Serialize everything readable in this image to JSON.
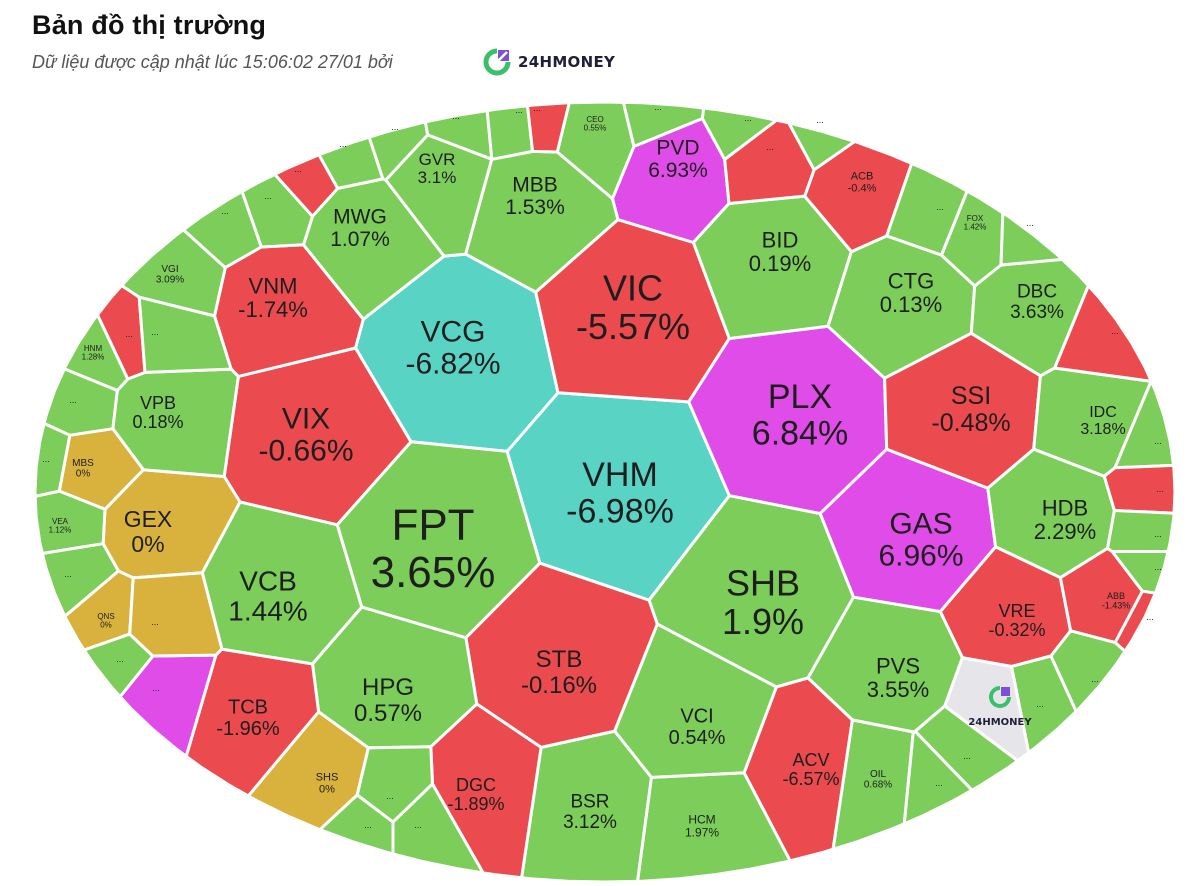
{
  "header": {
    "title": "Bản đồ thị trường",
    "subtitle": "Dữ liệu được cập nhật lúc 15:06:02 27/01 bởi",
    "brand": "24HMONEY"
  },
  "colors": {
    "up": "#7ccd5a",
    "down": "#eb4a4e",
    "ceiling": "#e04ce8",
    "floor": "#58d3c4",
    "unchanged": "#d8b23c",
    "logo_tile": "#e6e6ea"
  },
  "chart_data": {
    "type": "heatmap",
    "tiles": [
      {
        "symbol": "VHM",
        "value": "-6.98%",
        "status": "floor"
      },
      {
        "symbol": "VCG",
        "value": "-6.82%",
        "status": "floor"
      },
      {
        "symbol": "VIC",
        "value": "-5.57%",
        "status": "down"
      },
      {
        "symbol": "PLX",
        "value": "6.84%",
        "status": "ceiling"
      },
      {
        "symbol": "GAS",
        "value": "6.96%",
        "status": "ceiling"
      },
      {
        "symbol": "PVD",
        "value": "6.93%",
        "status": "ceiling"
      },
      {
        "symbol": "FPT",
        "value": "3.65%",
        "status": "up"
      },
      {
        "symbol": "SHB",
        "value": "1.9%",
        "status": "up"
      },
      {
        "symbol": "VIX",
        "value": "-0.66%",
        "status": "down"
      },
      {
        "symbol": "VNM",
        "value": "-1.74%",
        "status": "down"
      },
      {
        "symbol": "MWG",
        "value": "1.07%",
        "status": "up"
      },
      {
        "symbol": "GVR",
        "value": "3.1%",
        "status": "up"
      },
      {
        "symbol": "MBB",
        "value": "1.53%",
        "status": "up"
      },
      {
        "symbol": "BID",
        "value": "0.19%",
        "status": "up"
      },
      {
        "symbol": "CTG",
        "value": "0.13%",
        "status": "up"
      },
      {
        "symbol": "DBC",
        "value": "3.63%",
        "status": "up"
      },
      {
        "symbol": "SSI",
        "value": "-0.48%",
        "status": "down"
      },
      {
        "symbol": "IDC",
        "value": "3.18%",
        "status": "up"
      },
      {
        "symbol": "HDB",
        "value": "2.29%",
        "status": "up"
      },
      {
        "symbol": "VRE",
        "value": "-0.32%",
        "status": "down"
      },
      {
        "symbol": "ABB",
        "value": "-1.43%",
        "status": "down"
      },
      {
        "symbol": "PVS",
        "value": "3.55%",
        "status": "up"
      },
      {
        "symbol": "ACV",
        "value": "-6.57%",
        "status": "down"
      },
      {
        "symbol": "OIL",
        "value": "0.68%",
        "status": "up"
      },
      {
        "symbol": "HCM",
        "value": "1.97%",
        "status": "up"
      },
      {
        "symbol": "VCI",
        "value": "0.54%",
        "status": "up"
      },
      {
        "symbol": "BSR",
        "value": "3.12%",
        "status": "up"
      },
      {
        "symbol": "STB",
        "value": "-0.16%",
        "status": "down"
      },
      {
        "symbol": "DGC",
        "value": "-1.89%",
        "status": "down"
      },
      {
        "symbol": "HPG",
        "value": "0.57%",
        "status": "up"
      },
      {
        "symbol": "SHS",
        "value": "0%",
        "status": "unchanged"
      },
      {
        "symbol": "TCB",
        "value": "-1.96%",
        "status": "down"
      },
      {
        "symbol": "VCB",
        "value": "1.44%",
        "status": "up"
      },
      {
        "symbol": "GEX",
        "value": "0%",
        "status": "unchanged"
      },
      {
        "symbol": "VPB",
        "value": "0.18%",
        "status": "up"
      },
      {
        "symbol": "MBS",
        "value": "0%",
        "status": "unchanged"
      },
      {
        "symbol": "VEA",
        "value": "1.12%",
        "status": "up"
      },
      {
        "symbol": "QNS",
        "value": "0%",
        "status": "unchanged"
      },
      {
        "symbol": "HNM",
        "value": "1.28%",
        "status": "up"
      },
      {
        "symbol": "VGI",
        "value": "3.09%",
        "status": "up"
      },
      {
        "symbol": "CEO",
        "value": "0.55%",
        "status": "up"
      },
      {
        "symbol": "ACB",
        "value": "-0.4%",
        "status": "down"
      },
      {
        "symbol": "FOX",
        "value": "1.42%",
        "status": "up"
      }
    ],
    "small_tiles": [
      {
        "status": "up"
      },
      {
        "status": "up"
      },
      {
        "status": "down"
      },
      {
        "status": "up"
      },
      {
        "status": "up"
      },
      {
        "status": "up"
      },
      {
        "status": "up"
      },
      {
        "status": "down"
      },
      {
        "status": "up"
      },
      {
        "status": "up"
      },
      {
        "status": "down"
      },
      {
        "status": "up"
      },
      {
        "status": "up"
      },
      {
        "status": "up"
      },
      {
        "status": "down"
      },
      {
        "status": "ceiling"
      },
      {
        "status": "up"
      },
      {
        "status": "up"
      },
      {
        "status": "down"
      },
      {
        "status": "up"
      },
      {
        "status": "up"
      },
      {
        "status": "down"
      },
      {
        "status": "up"
      },
      {
        "status": "up"
      },
      {
        "status": "up"
      },
      {
        "status": "up"
      },
      {
        "status": "down"
      },
      {
        "status": "up"
      },
      {
        "status": "up"
      },
      {
        "status": "up"
      },
      {
        "status": "up"
      },
      {
        "status": "up"
      },
      {
        "status": "unchanged"
      },
      {
        "status": "up"
      },
      {
        "status": "up"
      },
      {
        "status": "up"
      }
    ],
    "small_label": "...",
    "logo_tile_text": "24HMONEY"
  }
}
